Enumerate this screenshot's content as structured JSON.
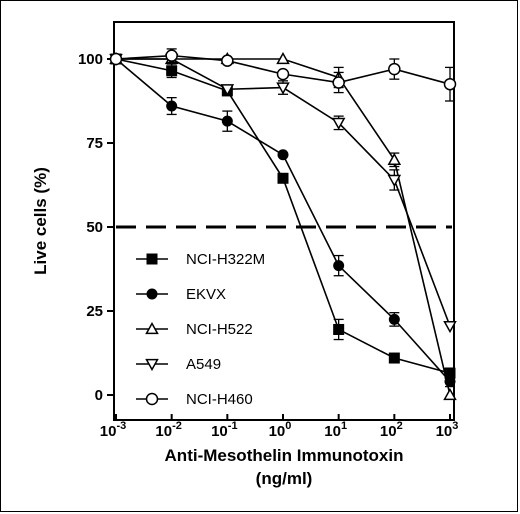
{
  "chart_data": {
    "type": "line",
    "xlabel": "Anti-Mesothelin Immunotoxin",
    "xlabel_unit": "(ng/ml)",
    "ylabel": "Live cells (%)",
    "x_scale": "log",
    "x": [
      0.001,
      0.01,
      0.1,
      1,
      10,
      100,
      1000
    ],
    "x_tick_labels": [
      {
        "base": "10",
        "exp": "-3"
      },
      {
        "base": "10",
        "exp": "-2"
      },
      {
        "base": "10",
        "exp": "-1"
      },
      {
        "base": "10",
        "exp": "0"
      },
      {
        "base": "10",
        "exp": "1"
      },
      {
        "base": "10",
        "exp": "2"
      },
      {
        "base": "10",
        "exp": "3"
      }
    ],
    "ylim": [
      0,
      100
    ],
    "y_ticks": [
      0,
      25,
      50,
      75,
      100
    ],
    "reference_line": {
      "y": 50,
      "style": "dashed"
    },
    "grid": false,
    "legend_position": "lower-left",
    "series": [
      {
        "name": "NCI-H322M",
        "marker": "square-filled",
        "values": [
          100,
          96.5,
          90.5,
          64.5,
          19.5,
          11,
          6.5
        ],
        "errors": [
          1,
          2,
          1,
          0,
          3,
          1,
          1.5
        ]
      },
      {
        "name": "EKVX",
        "marker": "circle-filled",
        "values": [
          100,
          86,
          81.5,
          71.5,
          38.5,
          22.5,
          4
        ],
        "errors": [
          1,
          2.5,
          3,
          0,
          3,
          2,
          1.5
        ]
      },
      {
        "name": "NCI-H522",
        "marker": "triangle-up-open",
        "values": [
          100,
          100,
          100,
          100,
          94.5,
          70,
          0
        ],
        "errors": [
          0,
          0,
          0,
          0,
          3,
          2,
          0
        ]
      },
      {
        "name": "A549",
        "marker": "triangle-down-open",
        "values": [
          100,
          100,
          91,
          91.5,
          81,
          64,
          20.5
        ],
        "errors": [
          0,
          0,
          0,
          2,
          2,
          3,
          0
        ]
      },
      {
        "name": "NCI-H460",
        "marker": "circle-open",
        "values": [
          100,
          101,
          99.5,
          95.5,
          93,
          97,
          92.5
        ],
        "errors": [
          0,
          2,
          0,
          0,
          3,
          3,
          5
        ]
      }
    ]
  }
}
